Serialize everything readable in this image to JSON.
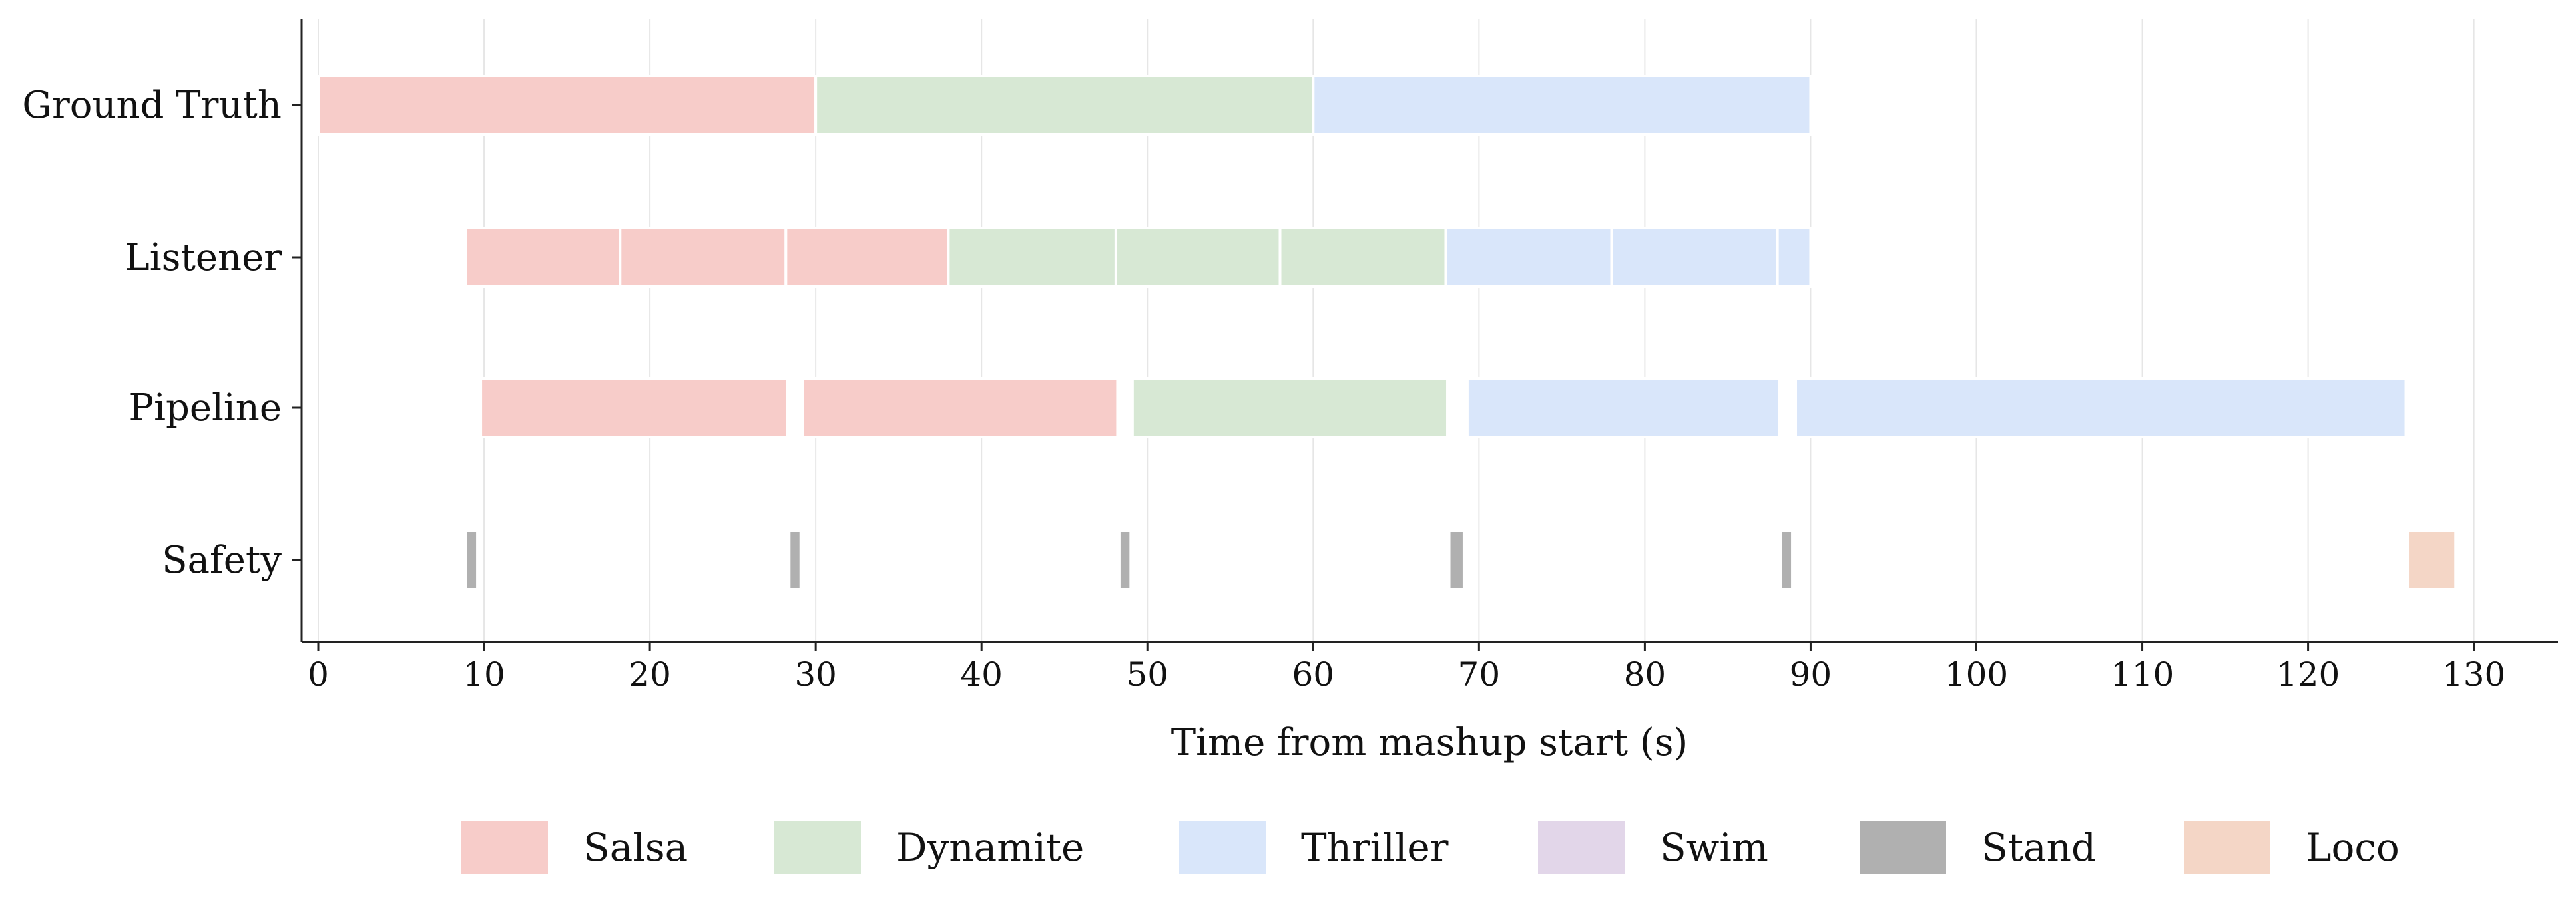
{
  "chart_data": {
    "type": "timeline",
    "xlabel": "Time from mashup start (s)",
    "xlim": [
      -1,
      135.5
    ],
    "xticks": [
      0,
      10,
      20,
      30,
      40,
      50,
      60,
      70,
      80,
      90,
      100,
      110,
      120,
      130
    ],
    "grid": "vertical",
    "legend_position": "bottom",
    "rows": [
      {
        "label": "Ground Truth",
        "segments": [
          {
            "start": 0,
            "end": 30,
            "class": "Salsa"
          },
          {
            "start": 30,
            "end": 60,
            "class": "Dynamite"
          },
          {
            "start": 60,
            "end": 90,
            "class": "Thriller"
          }
        ]
      },
      {
        "label": "Listener",
        "segments": [
          {
            "start": 8.9,
            "end": 18.2,
            "class": "Salsa"
          },
          {
            "start": 18.2,
            "end": 28.2,
            "class": "Salsa"
          },
          {
            "start": 28.2,
            "end": 38.0,
            "class": "Salsa"
          },
          {
            "start": 38.0,
            "end": 48.1,
            "class": "Dynamite"
          },
          {
            "start": 48.1,
            "end": 58.0,
            "class": "Dynamite"
          },
          {
            "start": 58.0,
            "end": 68.0,
            "class": "Dynamite"
          },
          {
            "start": 68.0,
            "end": 78.0,
            "class": "Thriller"
          },
          {
            "start": 78.0,
            "end": 88.0,
            "class": "Thriller"
          },
          {
            "start": 88.0,
            "end": 90.0,
            "class": "Thriller"
          }
        ]
      },
      {
        "label": "Pipeline",
        "segments": [
          {
            "start": 9.8,
            "end": 28.3,
            "class": "Salsa"
          },
          {
            "start": 29.2,
            "end": 48.2,
            "class": "Salsa"
          },
          {
            "start": 49.1,
            "end": 68.1,
            "class": "Dynamite"
          },
          {
            "start": 69.3,
            "end": 88.1,
            "class": "Thriller"
          },
          {
            "start": 89.1,
            "end": 125.9,
            "class": "Thriller"
          }
        ]
      },
      {
        "label": "Safety",
        "segments": [
          {
            "start": 8.9,
            "end": 9.6,
            "class": "Stand"
          },
          {
            "start": 28.4,
            "end": 29.1,
            "class": "Stand"
          },
          {
            "start": 48.3,
            "end": 49.0,
            "class": "Stand"
          },
          {
            "start": 68.2,
            "end": 69.1,
            "class": "Stand"
          },
          {
            "start": 88.2,
            "end": 88.9,
            "class": "Stand"
          },
          {
            "start": 126.0,
            "end": 128.9,
            "class": "Loco"
          }
        ]
      }
    ],
    "legend": [
      {
        "label": "Salsa",
        "color": "#f7ccc9"
      },
      {
        "label": "Dynamite",
        "color": "#d7e8d4"
      },
      {
        "label": "Thriller",
        "color": "#d9e6fa"
      },
      {
        "label": "Swim",
        "color": "#e2d6e9"
      },
      {
        "label": "Stand",
        "color": "#b0b0b0"
      },
      {
        "label": "Loco",
        "color": "#f4d6c6"
      }
    ]
  }
}
